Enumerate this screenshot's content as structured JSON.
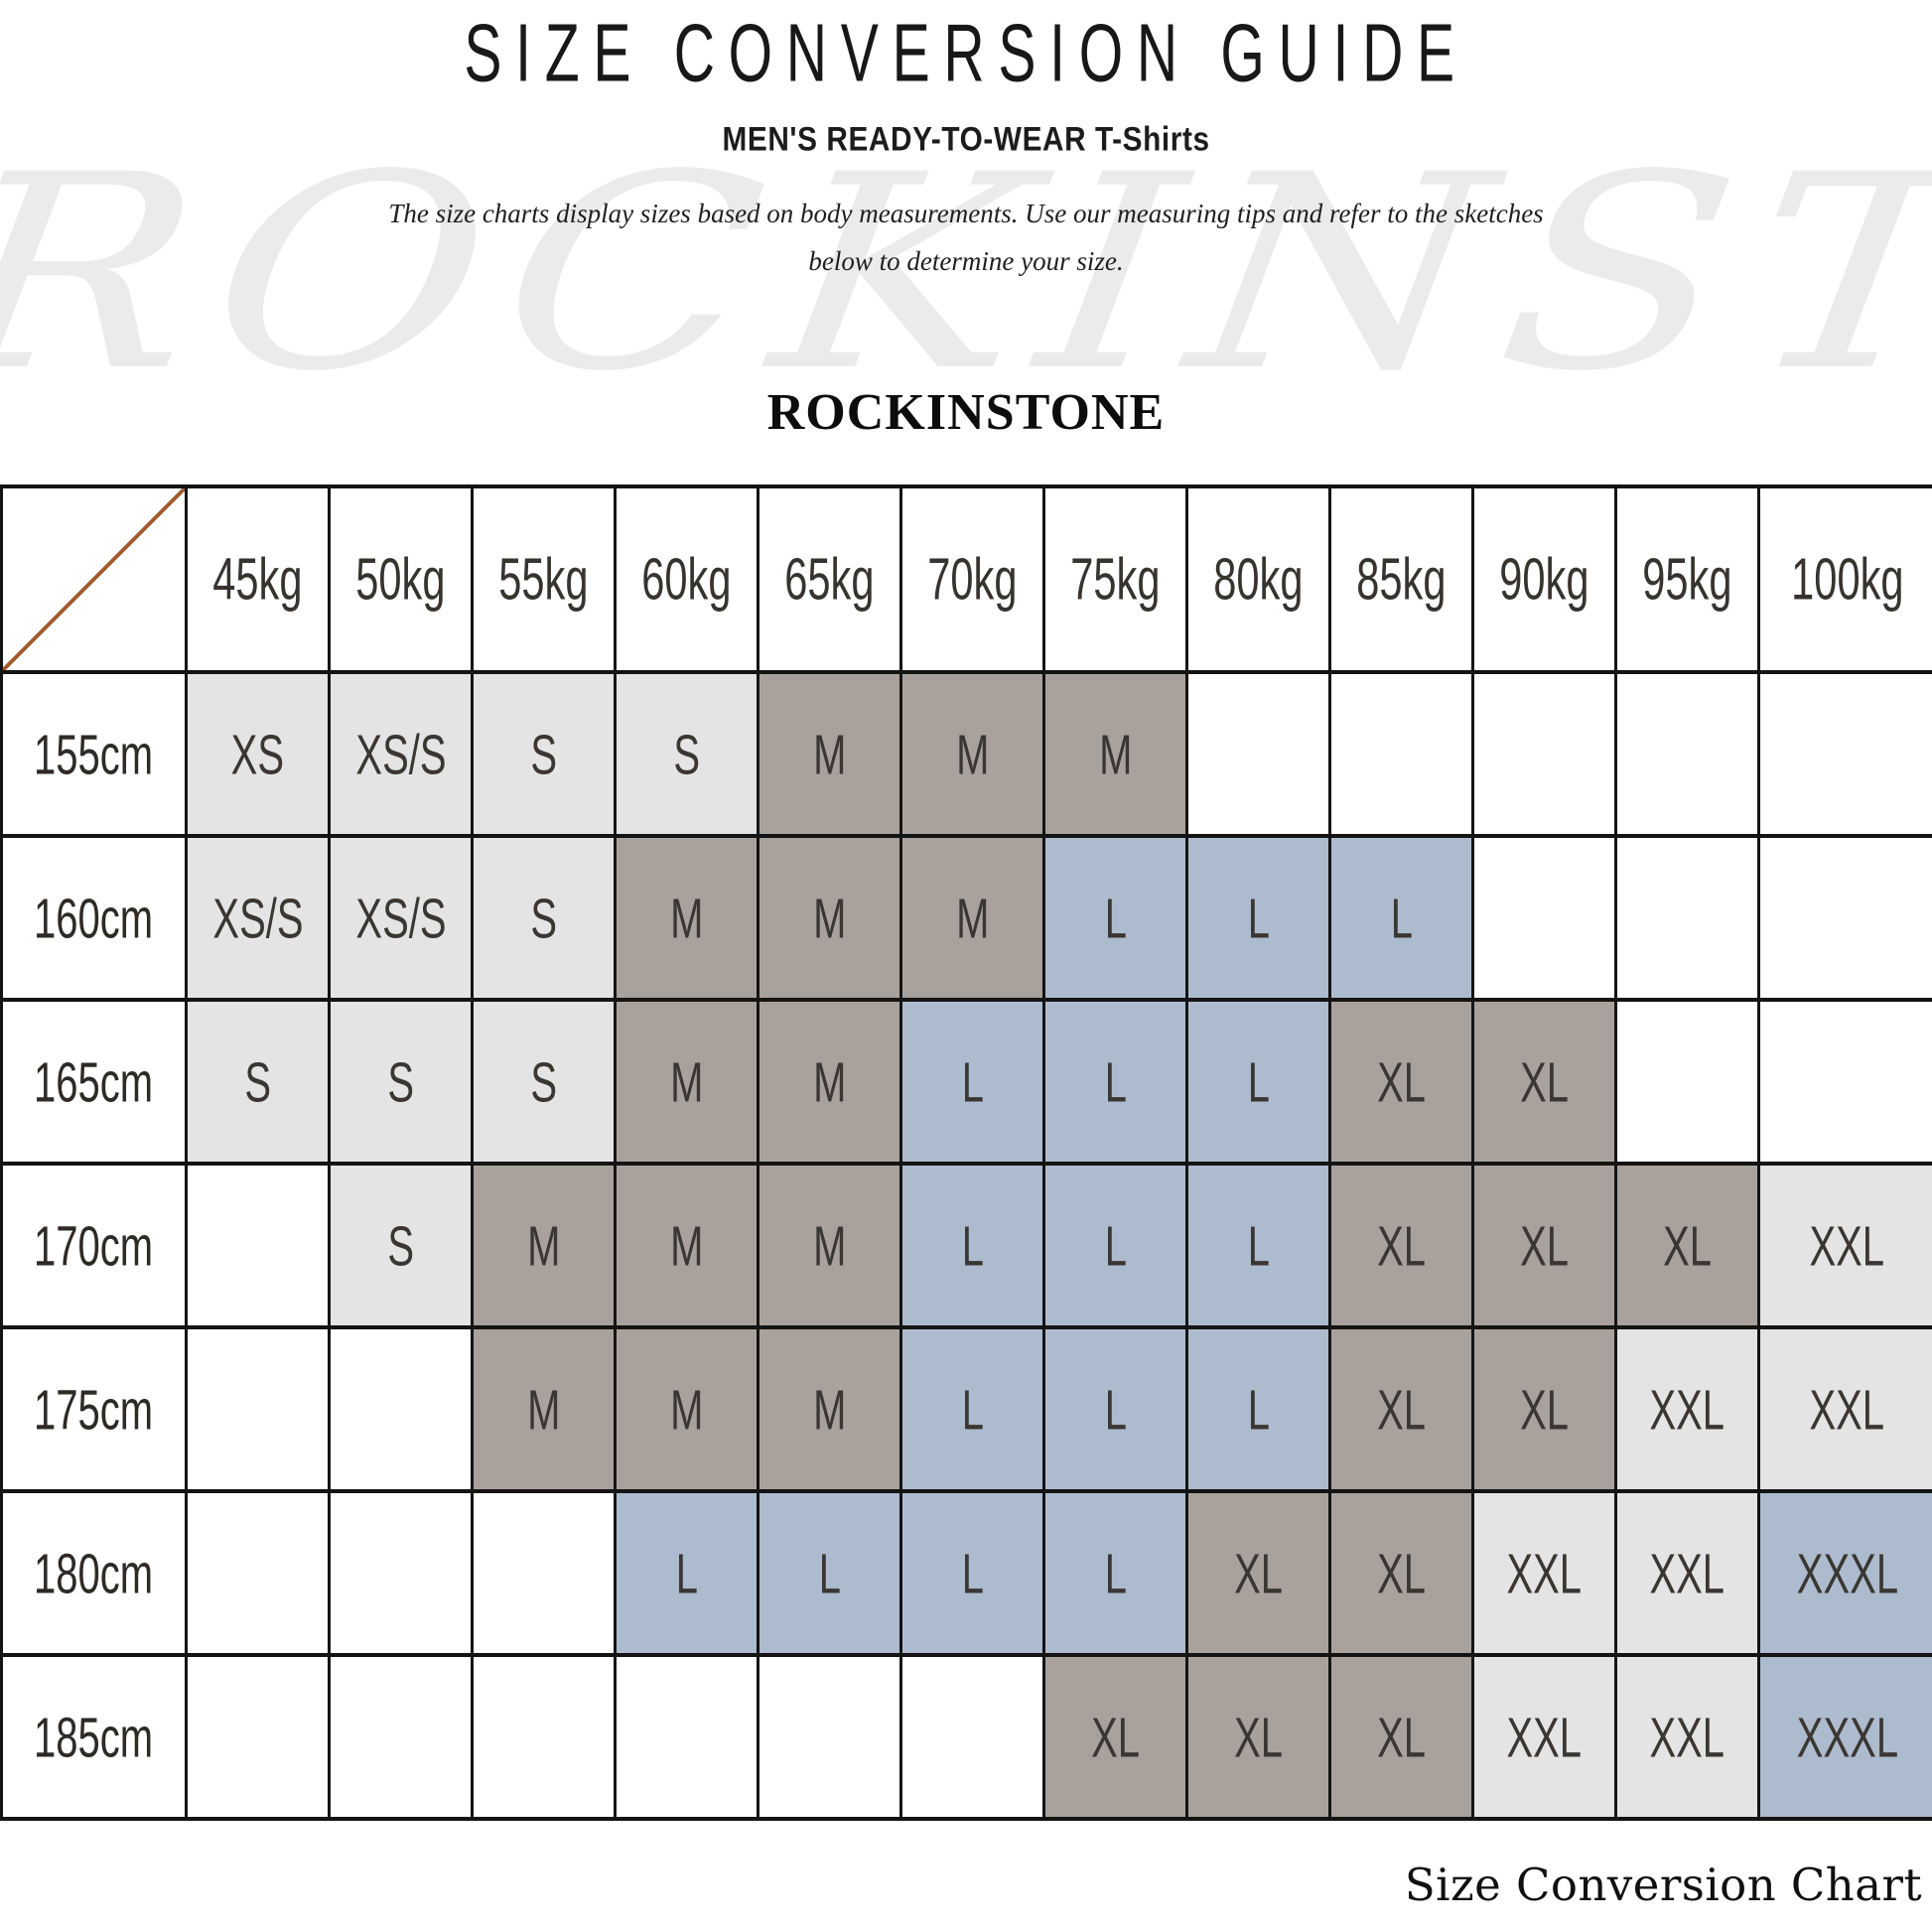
{
  "title": "SIZE CONVERSION GUIDE",
  "subtitle": "MEN'S READY-TO-WEAR T-Shirts",
  "description_line1": "The size charts display sizes based on body measurements. Use our measuring tips and refer to the sketches",
  "description_line2": "below to determine your size.",
  "watermark": "ROCKINSTONE",
  "brand": "ROCKINSTONE",
  "caption": "Size Conversion Chart",
  "chart_data": {
    "type": "table",
    "title": "SIZE CONVERSION GUIDE",
    "columns_weight_kg": [
      "45kg",
      "50kg",
      "55kg",
      "60kg",
      "65kg",
      "70kg",
      "75kg",
      "80kg",
      "85kg",
      "90kg",
      "95kg",
      "100kg"
    ],
    "rows_height_cm": [
      "155cm",
      "160cm",
      "165cm",
      "170cm",
      "175cm",
      "180cm",
      "185cm"
    ],
    "cells": [
      [
        "XS",
        "XS/S",
        "S",
        "S",
        "M",
        "M",
        "M",
        "",
        "",
        "",
        "",
        ""
      ],
      [
        "XS/S",
        "XS/S",
        "S",
        "M",
        "M",
        "M",
        "L",
        "L",
        "L",
        "",
        "",
        ""
      ],
      [
        "S",
        "S",
        "S",
        "M",
        "M",
        "L",
        "L",
        "L",
        "XL",
        "XL",
        "",
        ""
      ],
      [
        "",
        "S",
        "M",
        "M",
        "M",
        "L",
        "L",
        "L",
        "XL",
        "XL",
        "XL",
        "XXL"
      ],
      [
        "",
        "",
        "M",
        "M",
        "M",
        "L",
        "L",
        "L",
        "XL",
        "XL",
        "XXL",
        "XXL"
      ],
      [
        "",
        "",
        "",
        "L",
        "L",
        "L",
        "L",
        "XL",
        "XL",
        "XXL",
        "XXL",
        "XXXL"
      ],
      [
        "",
        "",
        "",
        "",
        "",
        "",
        "XL",
        "XL",
        "XL",
        "XXL",
        "XXL",
        "XXXL"
      ]
    ],
    "cell_tones": [
      [
        "light",
        "light",
        "light",
        "light",
        "taupe",
        "taupe",
        "taupe",
        "",
        "",
        "",
        "",
        ""
      ],
      [
        "light",
        "light",
        "light",
        "taupe",
        "taupe",
        "taupe",
        "blue",
        "blue",
        "blue",
        "",
        "",
        ""
      ],
      [
        "light",
        "light",
        "light",
        "taupe",
        "taupe",
        "blue",
        "blue",
        "blue",
        "taupe",
        "taupe",
        "",
        ""
      ],
      [
        "",
        "light",
        "taupe",
        "taupe",
        "taupe",
        "blue",
        "blue",
        "blue",
        "taupe",
        "taupe",
        "taupe",
        "light"
      ],
      [
        "",
        "",
        "taupe",
        "taupe",
        "taupe",
        "blue",
        "blue",
        "blue",
        "taupe",
        "taupe",
        "light",
        "light"
      ],
      [
        "",
        "",
        "",
        "blue",
        "blue",
        "blue",
        "blue",
        "taupe",
        "taupe",
        "light",
        "light",
        "blue"
      ],
      [
        "",
        "",
        "",
        "",
        "",
        "",
        "taupe",
        "taupe",
        "taupe",
        "light",
        "light",
        "blue"
      ]
    ],
    "tone_colors": {
      "light": "#e4e4e4",
      "taupe": "#a9a29c",
      "blue": "#adbbce",
      "empty": "#ffffff"
    },
    "diagonal_color": "#a25b2e",
    "legend_position": "none",
    "grid": true
  }
}
